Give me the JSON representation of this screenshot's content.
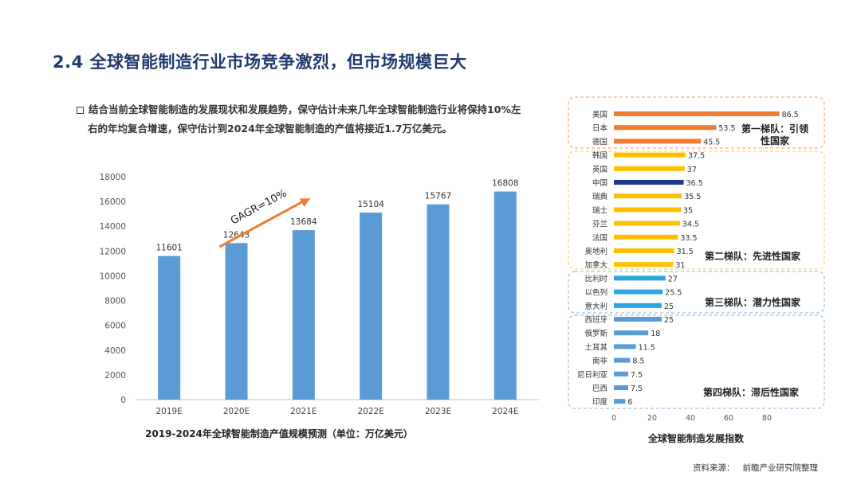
{
  "title": "2.4 全球智能制造行业市场竞争激烈，但市场规模巨大",
  "intro": {
    "line1": "结合当前全球智能制造的发展现状和发展趋势，保守估计未来几年全球智能制造行业将保持10%左",
    "line2": "右的年均复合增速，保守估计到2024年全球智能制造的产值将接近1.7万亿美元。"
  },
  "bar_caption": "2019-2024年全球智能制造产值规模预测（单位：万亿美元）",
  "rank_caption": "全球智能制造发展指数",
  "source": {
    "label": "资料来源：",
    "value": "前瞻产业研究院整理"
  },
  "colors": {
    "bar": "#5b9bd5",
    "cagr_arrow": "#ed7d31",
    "tier1_bar": "#ed7d31",
    "tier2_bar": "#ffc000",
    "tier2_highlight": "#1f3a93",
    "tier3_bar": "#2aa7e0",
    "tier4_bar": "#5b9bd5",
    "tier1_border": "#f4b183",
    "tier2_border": "#ffd966",
    "tier3_border": "#9dc3e6",
    "tier4_border": "#9dc3e6"
  },
  "chart_data": [
    {
      "type": "bar",
      "categories": [
        "2019E",
        "2020E",
        "2021E",
        "2022E",
        "2023E",
        "2024E"
      ],
      "values": [
        11601,
        12643,
        13684,
        15104,
        15767,
        16808
      ],
      "ylim": [
        0,
        18000
      ],
      "yticks": [
        0,
        2000,
        4000,
        6000,
        8000,
        10000,
        12000,
        14000,
        16000,
        18000
      ],
      "annotation": "GAGR=10%",
      "grid": false
    },
    {
      "type": "bar",
      "orientation": "horizontal",
      "xlim": [
        0,
        100
      ],
      "xticks": [
        0,
        20,
        40,
        60,
        80
      ],
      "groups": [
        {
          "label": "第一梯队：引领性国家",
          "label_line1": "第一梯队：引领",
          "label_line2": "性国家",
          "items": [
            {
              "name": "美国",
              "value": 86.5
            },
            {
              "name": "日本",
              "value": 53.5
            },
            {
              "name": "德国",
              "value": 45.5
            }
          ]
        },
        {
          "label": "第二梯队：先进性国家",
          "items": [
            {
              "name": "韩国",
              "value": 37.5
            },
            {
              "name": "英国",
              "value": 37
            },
            {
              "name": "中国",
              "value": 36.5,
              "highlight": true
            },
            {
              "name": "瑞典",
              "value": 35.5
            },
            {
              "name": "瑞士",
              "value": 35
            },
            {
              "name": "芬兰",
              "value": 34.5
            },
            {
              "name": "法国",
              "value": 33.5
            },
            {
              "name": "奥地利",
              "value": 31.5
            },
            {
              "name": "加拿大",
              "value": 31
            }
          ]
        },
        {
          "label": "第三梯队：潜力性国家",
          "items": [
            {
              "name": "比利时",
              "value": 27
            },
            {
              "name": "以色列",
              "value": 25.5
            },
            {
              "name": "意大利",
              "value": 25
            }
          ]
        },
        {
          "label": "第四梯队：滞后性国家",
          "items": [
            {
              "name": "西班牙",
              "value": 25
            },
            {
              "name": "俄罗斯",
              "value": 18
            },
            {
              "name": "土耳其",
              "value": 11.5
            },
            {
              "name": "南非",
              "value": 8.5
            },
            {
              "name": "尼日利亚",
              "value": 7.5
            },
            {
              "name": "巴西",
              "value": 7.5
            },
            {
              "name": "印度",
              "value": 6
            }
          ]
        }
      ]
    }
  ]
}
